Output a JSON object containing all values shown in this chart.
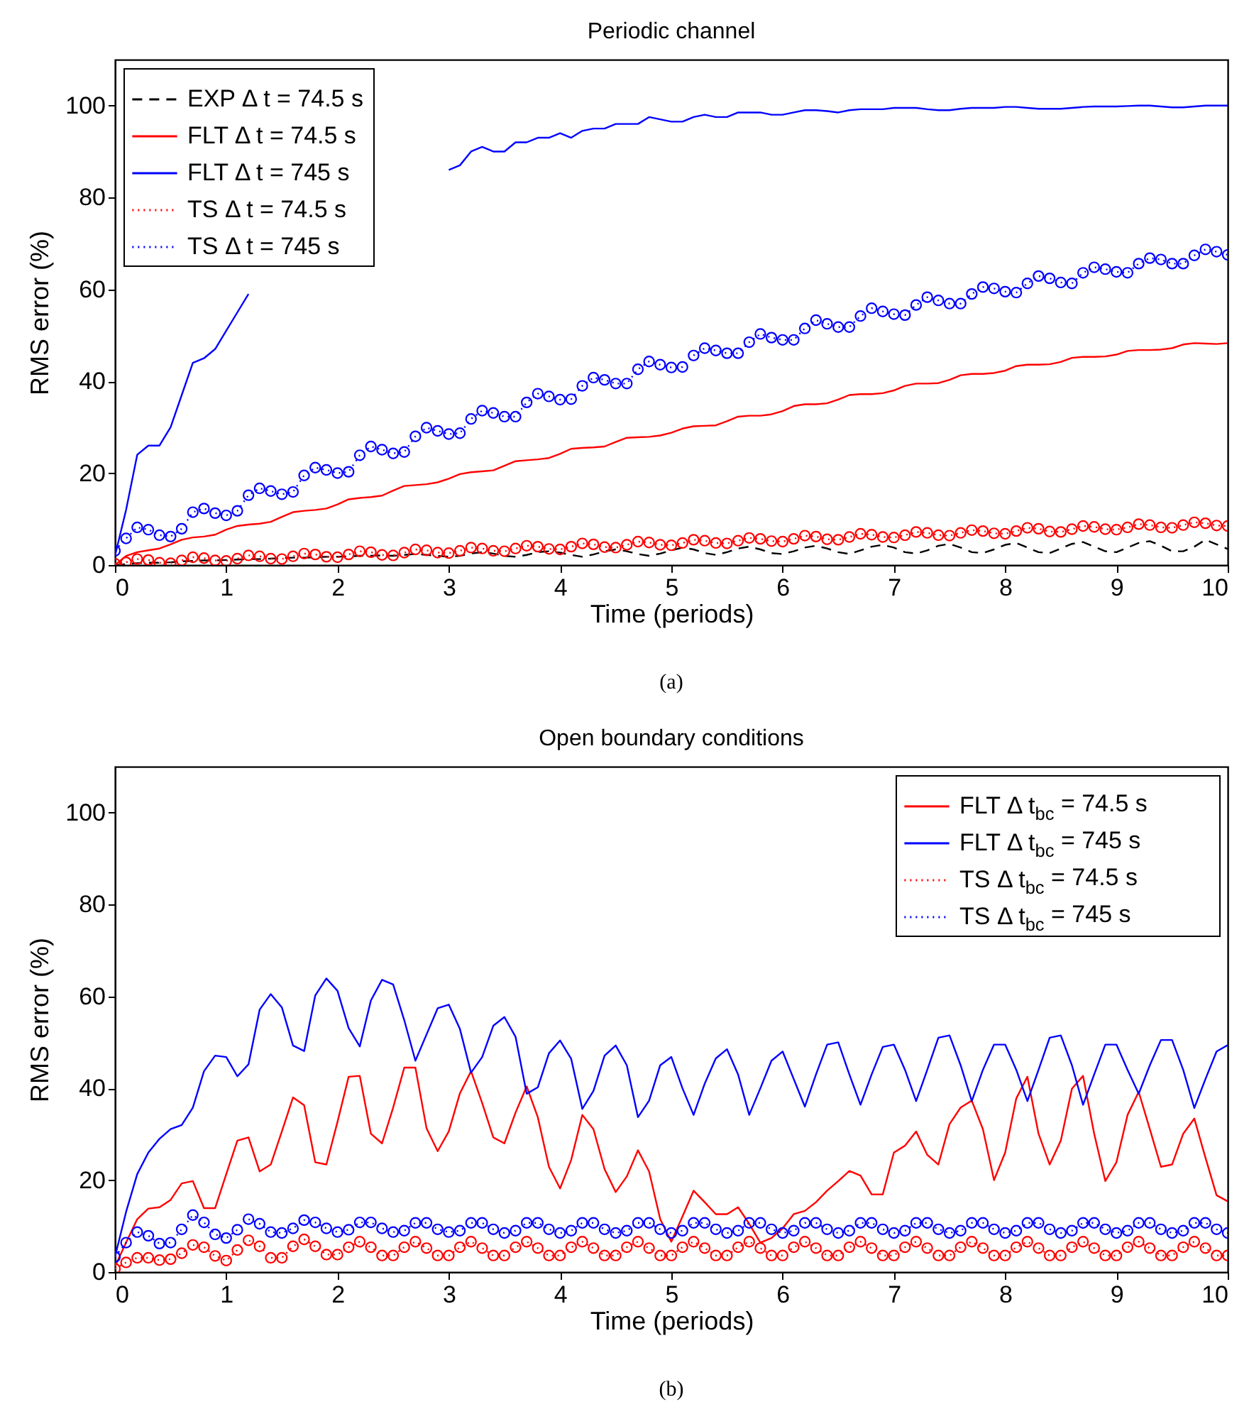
{
  "chart_data": [
    {
      "type": "line",
      "title": "Periodic channel",
      "xlabel": "Time (periods)",
      "ylabel": "RMS error (%)",
      "x": [
        0,
        0.1,
        0.2,
        0.3,
        0.4,
        0.5,
        0.6,
        0.7,
        0.8,
        0.9,
        1,
        1.1,
        1.2,
        1.3,
        1.4,
        1.5,
        1.6,
        1.7,
        1.8,
        1.9,
        2,
        2.1,
        2.2,
        2.3,
        2.4,
        2.5,
        2.6,
        2.7,
        2.8,
        2.9,
        3,
        3.1,
        3.2,
        3.3,
        3.4,
        3.5,
        3.6,
        3.7,
        3.8,
        3.9,
        4,
        4.1,
        4.2,
        4.3,
        4.4,
        4.5,
        4.6,
        4.7,
        4.8,
        4.9,
        5,
        5.1,
        5.2,
        5.3,
        5.4,
        5.5,
        5.6,
        5.7,
        5.8,
        5.9,
        6,
        6.1,
        6.2,
        6.3,
        6.4,
        6.5,
        6.6,
        6.7,
        6.8,
        6.9,
        7,
        7.1,
        7.2,
        7.3,
        7.4,
        7.5,
        7.6,
        7.7,
        7.8,
        7.9,
        8,
        8.1,
        8.2,
        8.3,
        8.4,
        8.5,
        8.6,
        8.7,
        8.8,
        8.9,
        9,
        9.1,
        9.2,
        9.3,
        9.4,
        9.5,
        9.6,
        9.7,
        9.8,
        9.9,
        10
      ],
      "xlim": [
        0,
        10
      ],
      "xticks": [
        0,
        1,
        2,
        3,
        4,
        5,
        6,
        7,
        8,
        9,
        10
      ],
      "ylim": [
        0,
        110
      ],
      "yticks": [
        0,
        20,
        40,
        60,
        80,
        100
      ],
      "legend": "top left",
      "annotations": [
        "(a)"
      ],
      "series": [
        {
          "name": "EXP Δ t = 74.5 s",
          "color": "#000000",
          "line_style": "dashed",
          "marker": "none",
          "values": [
            0,
            0.2,
            0.4,
            0.5,
            0.5,
            0.6,
            0.8,
            0.9,
            1,
            1,
            1.1,
            1.2,
            1.3,
            1.3,
            1.4,
            1.5,
            1.6,
            1.6,
            1.7,
            1.8,
            1.8,
            1.9,
            2,
            2,
            2.1,
            2,
            2.2,
            2.4,
            2.2,
            2,
            1.8,
            2,
            2.5,
            2.8,
            2.5,
            2,
            1.8,
            2.2,
            2.8,
            3,
            2.7,
            2.2,
            1.8,
            2.3,
            3,
            3.4,
            3,
            2.4,
            2,
            2.5,
            3.2,
            3.8,
            3.4,
            2.6,
            2.2,
            2.8,
            3.6,
            4,
            3.4,
            2.6,
            2.4,
            3,
            3.8,
            4.2,
            3.6,
            2.8,
            2.4,
            3.2,
            4,
            4.4,
            3.8,
            2.8,
            2.5,
            3.2,
            4.2,
            4.6,
            3.8,
            2.8,
            2.6,
            3.4,
            4.4,
            4.8,
            3.8,
            2.8,
            2.6,
            3.6,
            4.6,
            5,
            4,
            3,
            2.8,
            3.8,
            4.8,
            5.2,
            4.2,
            3,
            3,
            4,
            5.5,
            4.5,
            3.5
          ]
        },
        {
          "name": "FLT Δ t = 74.5 s",
          "color": "#ff0000",
          "line_style": "solid",
          "marker": "none",
          "values": [
            0,
            2,
            2.8,
            3.2,
            3.6,
            4.5,
            5.5,
            6,
            6.2,
            6.6,
            7.7,
            8.5,
            8.8,
            9,
            9.4,
            10.5,
            11.5,
            11.8,
            12,
            12.3,
            13.2,
            14.3,
            14.6,
            14.8,
            15.1,
            16.2,
            17.2,
            17.4,
            17.6,
            18,
            18.8,
            19.8,
            20.2,
            20.4,
            20.6,
            21.6,
            22.6,
            22.8,
            23,
            23.3,
            24.2,
            25.3,
            25.5,
            25.6,
            25.8,
            26.8,
            27.7,
            27.8,
            27.9,
            28.2,
            28.8,
            29.7,
            30.2,
            30.3,
            30.4,
            31.3,
            32.3,
            32.5,
            32.5,
            32.8,
            33.5,
            34.6,
            35,
            35,
            35.2,
            36,
            37,
            37.2,
            37.2,
            37.4,
            38,
            39,
            39.5,
            39.5,
            39.6,
            40.3,
            41.3,
            41.6,
            41.6,
            41.8,
            42.3,
            43.3,
            43.6,
            43.6,
            43.7,
            44.2,
            45.1,
            45.3,
            45.3,
            45.4,
            45.8,
            46.6,
            46.8,
            46.8,
            46.9,
            47.2,
            48,
            48.3,
            48.2,
            48.1,
            48.3
          ]
        },
        {
          "name": "FLT Δ t = 745 s",
          "color": "#0000ff",
          "line_style": "solid",
          "marker": "none",
          "values": [
            2,
            12,
            24,
            26,
            26,
            30,
            37,
            44,
            45,
            47,
            51,
            55,
            59,
            null,
            null,
            null,
            null,
            null,
            null,
            null,
            null,
            null,
            null,
            null,
            null,
            null,
            null,
            null,
            null,
            null,
            86,
            87,
            90,
            91,
            90,
            90,
            92,
            92,
            93,
            93,
            94,
            93,
            94.5,
            95,
            95,
            96,
            96,
            96,
            97.5,
            97,
            96.5,
            96.5,
            97.5,
            98,
            97.5,
            97.5,
            98.5,
            98.5,
            98.5,
            98,
            98,
            98.5,
            99,
            99,
            98.8,
            98.5,
            99,
            99.2,
            99.2,
            99.2,
            99.5,
            99.5,
            99.5,
            99.2,
            99,
            99,
            99.3,
            99.5,
            99.5,
            99.5,
            99.7,
            99.7,
            99.5,
            99.3,
            99.3,
            99.3,
            99.5,
            99.7,
            99.8,
            99.8,
            99.8,
            99.9,
            100,
            100,
            99.8,
            99.6,
            99.6,
            99.8,
            100,
            100,
            100
          ]
        },
        {
          "name": "TS Δ t = 74.5 s",
          "color": "#ff0000",
          "line_style": "dotted",
          "marker": "circle",
          "values": [
            0.3,
            0.6,
            1.3,
            1.1,
            0.5,
            0.4,
            1,
            1.7,
            1.5,
            1,
            0.9,
            1.4,
            2.1,
            1.9,
            1.4,
            1.3,
            1.9,
            2.5,
            2.3,
            1.8,
            1.7,
            2.3,
            3,
            2.8,
            2.2,
            2.1,
            2.7,
            3.4,
            3.2,
            2.7,
            2.6,
            3.1,
            3.8,
            3.6,
            3.1,
            3,
            3.6,
            4.2,
            4,
            3.5,
            3.4,
            4,
            4.7,
            4.5,
            3.9,
            3.8,
            4.4,
            5.1,
            4.9,
            4.4,
            4.3,
            4.8,
            5.5,
            5.3,
            4.8,
            4.7,
            5.3,
            5.9,
            5.7,
            5.2,
            5.1,
            5.7,
            6.4,
            6.2,
            5.6,
            5.5,
            6.1,
            6.8,
            6.6,
            6.1,
            6,
            6.5,
            7.2,
            7,
            6.5,
            6.4,
            7,
            7.6,
            7.4,
            6.9,
            6.8,
            7.4,
            8.1,
            7.9,
            7.3,
            7.2,
            7.8,
            8.5,
            8.3,
            7.8,
            7.7,
            8.2,
            8.9,
            8.7,
            8.2,
            8.1,
            8.7,
            9.3,
            9.1,
            8.6,
            8.5
          ]
        },
        {
          "name": "TS Δ t = 745 s",
          "color": "#0000ff",
          "line_style": "dotted",
          "marker": "circle",
          "values": [
            3.1,
            5.8,
            8.2,
            7.7,
            6.5,
            6.2,
            7.9,
            11.5,
            12.3,
            11.3,
            10.8,
            11.8,
            15.2,
            16.7,
            16.1,
            15.4,
            15.9,
            19.5,
            21.2,
            20.7,
            20,
            20.3,
            23.9,
            25.8,
            25.1,
            24.3,
            24.6,
            28,
            29.9,
            29.2,
            28.5,
            28.7,
            31.8,
            33.6,
            33.1,
            32.3,
            32.3,
            35.4,
            37.3,
            36.7,
            36,
            36.1,
            39,
            40.8,
            40.3,
            39.5,
            39.5,
            42.6,
            44.3,
            43.6,
            43,
            43.1,
            45.6,
            47.2,
            46.7,
            46.1,
            46.1,
            48.5,
            50.3,
            49.5,
            49,
            49,
            51.5,
            53.3,
            52.5,
            51.8,
            51.8,
            54.2,
            55.9,
            55.2,
            54.6,
            54.4,
            56.6,
            58.3,
            57.6,
            56.9,
            56.9,
            59,
            60.5,
            60.2,
            59.5,
            59.3,
            61.3,
            62.9,
            62.4,
            61.5,
            61.3,
            63.6,
            64.8,
            64.4,
            63.8,
            63.6,
            65.6,
            66.8,
            66.5,
            65.6,
            65.6,
            67.4,
            68.7,
            68.2,
            67.5
          ]
        }
      ]
    },
    {
      "type": "line",
      "title": "Open boundary conditions",
      "xlabel": "Time (periods)",
      "ylabel": "RMS error (%)",
      "x": [
        0,
        0.1,
        0.2,
        0.3,
        0.4,
        0.5,
        0.6,
        0.7,
        0.8,
        0.9,
        1,
        1.1,
        1.2,
        1.3,
        1.4,
        1.5,
        1.6,
        1.7,
        1.8,
        1.9,
        2,
        2.1,
        2.2,
        2.3,
        2.4,
        2.5,
        2.6,
        2.7,
        2.8,
        2.9,
        3,
        3.1,
        3.2,
        3.3,
        3.4,
        3.5,
        3.6,
        3.7,
        3.8,
        3.9,
        4,
        4.1,
        4.2,
        4.3,
        4.4,
        4.5,
        4.6,
        4.7,
        4.8,
        4.9,
        5,
        5.1,
        5.2,
        5.3,
        5.4,
        5.5,
        5.6,
        5.7,
        5.8,
        5.9,
        6,
        6.1,
        6.2,
        6.3,
        6.4,
        6.5,
        6.6,
        6.7,
        6.8,
        6.9,
        7,
        7.1,
        7.2,
        7.3,
        7.4,
        7.5,
        7.6,
        7.7,
        7.8,
        7.9,
        8,
        8.1,
        8.2,
        8.3,
        8.4,
        8.5,
        8.6,
        8.7,
        8.8,
        8.9,
        9,
        9.1,
        9.2,
        9.3,
        9.4,
        9.5,
        9.6,
        9.7,
        9.8,
        9.9,
        10
      ],
      "xlim": [
        0,
        10
      ],
      "xticks": [
        0,
        1,
        2,
        3,
        4,
        5,
        6,
        7,
        8,
        9,
        10
      ],
      "ylim": [
        0,
        110
      ],
      "yticks": [
        0,
        20,
        40,
        60,
        80,
        100
      ],
      "legend": "top right",
      "annotations": [
        "(b)"
      ],
      "series": [
        {
          "name": "FLT Δ t$_{bc}$ = 74.5 s",
          "color": "#ff0000",
          "line_style": "solid",
          "marker": "none",
          "values": [
            1.2,
            6.4,
            11.5,
            13.8,
            14.1,
            15.7,
            19.3,
            19.8,
            13.9,
            13.9,
            21.3,
            28.6,
            29.3,
            21.9,
            23.4,
            30.6,
            38,
            36.3,
            23.9,
            23.4,
            32.7,
            42.5,
            42.7,
            30.1,
            28,
            35.8,
            44.5,
            44.5,
            31.3,
            26.3,
            30.6,
            38.9,
            43.7,
            36.8,
            29.3,
            28,
            34.7,
            40.4,
            33.7,
            22.9,
            18.2,
            24.4,
            34.2,
            31.1,
            22.4,
            17.4,
            20.8,
            26.5,
            21.9,
            11.5,
            6.6,
            12.1,
            17.7,
            15.2,
            12.6,
            12.6,
            14.1,
            10.5,
            6.4,
            7.4,
            9.5,
            12.6,
            13.3,
            15.2,
            17.7,
            19.8,
            22,
            21,
            16.9,
            16.9,
            26,
            27.5,
            30.6,
            25.5,
            23.4,
            32.2,
            35.8,
            37.3,
            31.1,
            20,
            26,
            37.8,
            42.5,
            30.1,
            23.4,
            28.6,
            39.9,
            42.7,
            30.1,
            19.8,
            23.9,
            34.2,
            39.2,
            31.1,
            22.9,
            23.4,
            30.1,
            33.4,
            24.9,
            16.7,
            15.4
          ]
        },
        {
          "name": "FLT Δ t$_{bc}$ = 745 s",
          "color": "#0000ff",
          "line_style": "solid",
          "marker": "none",
          "values": [
            3.3,
            13.1,
            21.3,
            26,
            29,
            31.1,
            32,
            35.8,
            43.7,
            47.1,
            46.8,
            42.6,
            45.2,
            57.1,
            60.5,
            57.6,
            49.3,
            48.1,
            60.2,
            63.9,
            61.2,
            53.1,
            49.1,
            59.1,
            63.6,
            62.6,
            54.8,
            46,
            51.7,
            57.4,
            58.2,
            52.9,
            43.4,
            46.8,
            53.6,
            55.5,
            51.2,
            38.8,
            40.2,
            47.6,
            50.4,
            46.4,
            35.5,
            39.4,
            47.1,
            49.3,
            45,
            33.7,
            37.3,
            45,
            46.8,
            40,
            34.2,
            41,
            46.5,
            48.5,
            43,
            34.2,
            40,
            46,
            48,
            42,
            36,
            43,
            49.5,
            50,
            43,
            36.4,
            43,
            49,
            49.5,
            44,
            37.2,
            44,
            51,
            51.5,
            45,
            37.2,
            44,
            49.5,
            49.5,
            44,
            37.2,
            44,
            51,
            51.5,
            45,
            36.4,
            43,
            49.5,
            49.5,
            44,
            38.8,
            45,
            50.5,
            50.5,
            44,
            35.7,
            42,
            48,
            49.4
          ]
        },
        {
          "name": "TS Δ t$_{bc}$ = 74.5 s",
          "color": "#ff0000",
          "line_style": "dotted",
          "marker": "circle",
          "values": [
            0.7,
            2.1,
            3.1,
            3.1,
            2.6,
            2.8,
            4.1,
            5.9,
            5.4,
            3.5,
            2.5,
            4.8,
            6.9,
            5.6,
            3.1,
            3.1,
            5.6,
            7.1,
            5.6,
            3.8,
            3.8,
            5.4,
            6.6,
            5.4,
            3.6,
            3.6,
            5.4,
            6.6,
            5.2,
            3.6,
            3.6,
            5.4,
            6.6,
            5.2,
            3.6,
            3.6,
            5.4,
            6.6,
            5.2,
            3.6,
            3.6,
            5.4,
            6.6,
            5.2,
            3.6,
            3.6,
            5.4,
            6.6,
            5.2,
            3.6,
            3.6,
            5.4,
            6.6,
            5.2,
            3.6,
            3.6,
            5.4,
            6.6,
            5.2,
            3.6,
            3.6,
            5.4,
            6.6,
            5.2,
            3.6,
            3.6,
            5.4,
            6.6,
            5.2,
            3.6,
            3.6,
            5.4,
            6.6,
            5.2,
            3.6,
            3.6,
            5.4,
            6.6,
            5.2,
            3.6,
            3.6,
            5.4,
            6.6,
            5.2,
            3.6,
            3.6,
            5.4,
            6.6,
            5.2,
            3.6,
            3.6,
            5.4,
            6.6,
            5.2,
            3.6,
            3.6,
            5.4,
            6.6,
            5.2,
            3.6,
            3.6
          ]
        },
        {
          "name": "TS Δ t$_{bc}$ = 745 s",
          "color": "#0000ff",
          "line_style": "dotted",
          "marker": "circle",
          "values": [
            3.3,
            6.4,
            8.7,
            7.9,
            6.2,
            6.4,
            9.3,
            12.4,
            10.8,
            8.2,
            7.4,
            9.2,
            11.5,
            10.5,
            8.7,
            8.5,
            9.5,
            11.3,
            10.8,
            9.5,
            8.7,
            9.2,
            10.8,
            10.8,
            9.5,
            8.7,
            9,
            10.7,
            10.7,
            9.3,
            8.7,
            9,
            10.7,
            10.7,
            9.3,
            8.5,
            9,
            10.7,
            10.7,
            9.3,
            8.5,
            9,
            10.7,
            10.7,
            9.3,
            8.5,
            9,
            10.7,
            10.7,
            9.3,
            8.5,
            9,
            10.7,
            10.7,
            9.3,
            8.5,
            9,
            10.7,
            10.7,
            9.3,
            8.5,
            9,
            10.7,
            10.7,
            9.3,
            8.5,
            9,
            10.7,
            10.7,
            9.3,
            8.5,
            9,
            10.7,
            10.7,
            9.3,
            8.5,
            9,
            10.7,
            10.7,
            9.3,
            8.5,
            9,
            10.7,
            10.7,
            9.3,
            8.5,
            9,
            10.7,
            10.7,
            9.3,
            8.5,
            9,
            10.7,
            10.7,
            9.3,
            8.5,
            9,
            10.7,
            10.7,
            9.3,
            8.5
          ]
        }
      ]
    }
  ]
}
